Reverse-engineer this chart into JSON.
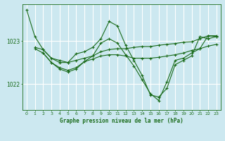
{
  "title": "Graphe pression niveau de la mer (hPa)",
  "background_color": "#cce8f0",
  "grid_color": "#ffffff",
  "line_color": "#1a6b1a",
  "xlim": [
    -0.5,
    23.5
  ],
  "ylim": [
    1021.4,
    1023.85
  ],
  "yticks": [
    1022,
    1023
  ],
  "xticks": [
    0,
    1,
    2,
    3,
    4,
    5,
    6,
    7,
    8,
    9,
    10,
    11,
    12,
    13,
    14,
    15,
    16,
    17,
    18,
    19,
    20,
    21,
    22,
    23
  ],
  "series1": {
    "x": [
      0,
      1,
      2,
      3,
      4,
      5,
      6,
      7,
      8,
      9,
      10,
      11,
      12,
      13,
      14,
      15,
      16,
      17,
      18,
      19,
      20,
      21,
      22,
      23
    ],
    "y": [
      1023.72,
      1023.1,
      1022.8,
      1022.6,
      1022.5,
      1022.5,
      1022.7,
      1022.75,
      1022.85,
      1023.05,
      1023.45,
      1023.35,
      1022.9,
      1022.55,
      1022.2,
      1021.75,
      1021.7,
      1021.9,
      1022.45,
      1022.55,
      1022.65,
      1023.1,
      1023.05,
      1023.1
    ]
  },
  "series2": {
    "x": [
      1,
      2,
      3,
      4,
      5,
      6,
      7,
      8,
      9,
      10,
      11,
      12,
      13,
      14,
      15,
      16,
      17,
      18,
      19,
      20,
      21,
      22,
      23
    ],
    "y": [
      1022.85,
      1022.8,
      1022.6,
      1022.55,
      1022.5,
      1022.55,
      1022.6,
      1022.65,
      1022.75,
      1022.8,
      1022.82,
      1022.82,
      1022.85,
      1022.87,
      1022.87,
      1022.9,
      1022.92,
      1022.94,
      1022.97,
      1022.98,
      1023.05,
      1023.12,
      1023.12
    ]
  },
  "series3": {
    "x": [
      1,
      2,
      3,
      4,
      5,
      6,
      7,
      8,
      9,
      10,
      11,
      12,
      13,
      14,
      15,
      16,
      17,
      18,
      19,
      20,
      21,
      22,
      23
    ],
    "y": [
      1022.82,
      1022.72,
      1022.5,
      1022.38,
      1022.32,
      1022.38,
      1022.52,
      1022.58,
      1022.65,
      1022.68,
      1022.68,
      1022.65,
      1022.6,
      1022.6,
      1022.6,
      1022.62,
      1022.65,
      1022.68,
      1022.72,
      1022.78,
      1022.82,
      1022.88,
      1022.92
    ]
  },
  "series4": {
    "x": [
      2,
      3,
      4,
      5,
      6,
      7,
      8,
      9,
      10,
      11,
      12,
      13,
      14,
      15,
      16,
      17,
      18,
      19,
      20,
      21,
      22,
      23
    ],
    "y": [
      1022.72,
      1022.5,
      1022.35,
      1022.28,
      1022.35,
      1022.52,
      1022.65,
      1022.95,
      1023.05,
      1022.95,
      1022.68,
      1022.42,
      1022.1,
      1021.78,
      1021.62,
      1022.05,
      1022.55,
      1022.6,
      1022.72,
      1022.82,
      1023.12,
      1023.1
    ]
  }
}
